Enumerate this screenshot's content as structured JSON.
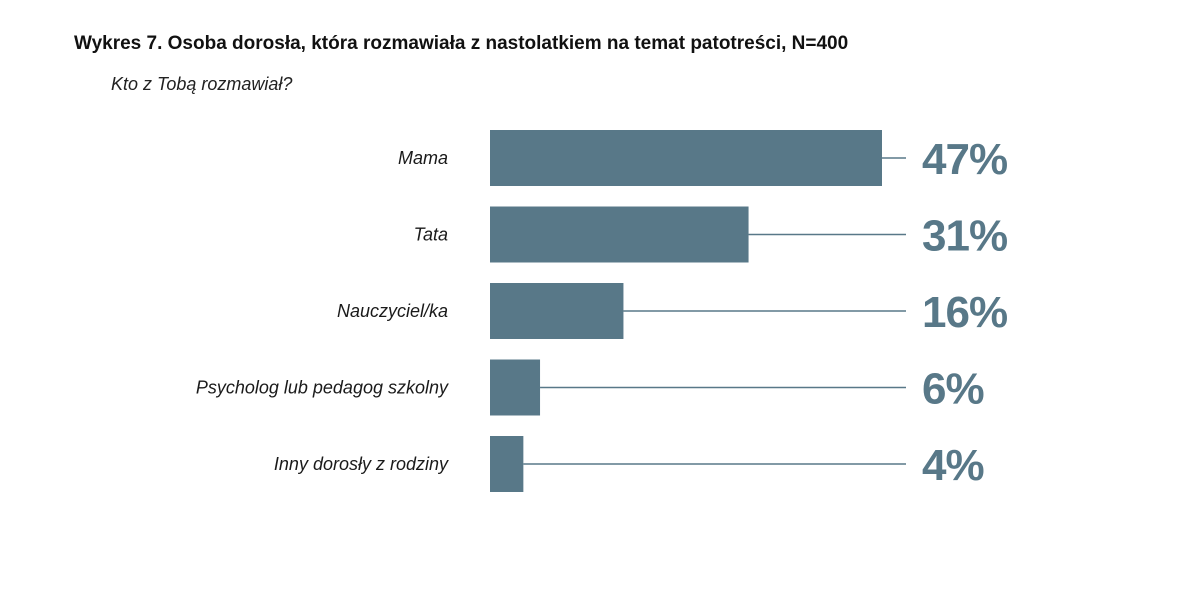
{
  "colors": {
    "bar": "#587888",
    "value_text": "#587888",
    "leader_line": "#587888"
  },
  "chart_data": {
    "type": "bar",
    "orientation": "horizontal",
    "title": "Wykres 7. Osoba dorosła, która rozmawiała z nastolatkiem na temat patotreści, N=400",
    "subtitle": "Kto z Tobą rozmawiał?",
    "categories": [
      "Mama",
      "Tata",
      "Nauczyciel/ka",
      "Psycholog lub pedagog szkolny",
      "Inny dorosły z rodziny"
    ],
    "values": [
      47,
      31,
      16,
      6,
      4
    ],
    "value_labels": [
      "47%",
      "31%",
      "16%",
      "6%",
      "4%"
    ],
    "unit": "%",
    "xlim": [
      0,
      47
    ],
    "xlabel": "",
    "ylabel": "",
    "grid": false,
    "legend": "none"
  }
}
